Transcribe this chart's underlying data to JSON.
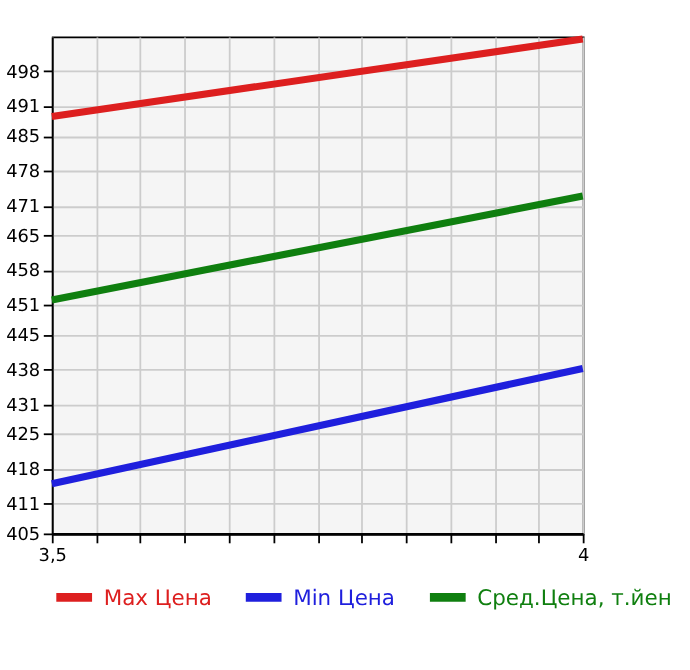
{
  "chart_data": {
    "type": "line",
    "x": [
      3.5,
      4
    ],
    "xlim": [
      3.5,
      4
    ],
    "xticks": [
      {
        "value": 3.5,
        "label": "3,5"
      },
      {
        "value": 3.5417,
        "label": null
      },
      {
        "value": 3.5833,
        "label": null
      },
      {
        "value": 3.625,
        "label": null
      },
      {
        "value": 3.6667,
        "label": null
      },
      {
        "value": 3.7083,
        "label": null
      },
      {
        "value": 3.75,
        "label": null
      },
      {
        "value": 3.7917,
        "label": null
      },
      {
        "value": 3.8333,
        "label": null
      },
      {
        "value": 3.875,
        "label": null
      },
      {
        "value": 3.9167,
        "label": null
      },
      {
        "value": 3.9583,
        "label": null
      },
      4
    ],
    "ylim": [
      405,
      505
    ],
    "yticks": [
      405,
      411,
      418,
      425,
      431,
      438,
      445,
      451,
      458,
      465,
      471,
      478,
      485,
      491,
      498
    ],
    "series": [
      {
        "name": "Max Цена",
        "color": "#dd1f1f",
        "values": [
          488.9,
          504.5
        ]
      },
      {
        "name": "Min Цена",
        "color": "#1f1fdd",
        "values": [
          415,
          438.2
        ]
      },
      {
        "name": "Сред.Цена, т.йен",
        "color": "#0f7f0f",
        "values": [
          452,
          472.9
        ]
      }
    ],
    "grid": true,
    "legend": "bottom",
    "line_style": "solid",
    "marker": "none"
  }
}
